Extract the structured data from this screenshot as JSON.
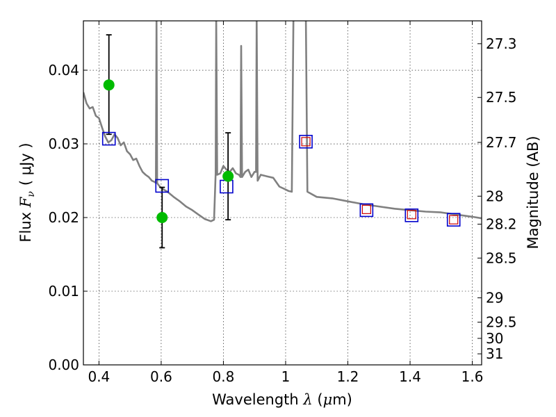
{
  "chart_data": {
    "type": "scatter",
    "xlabel": {
      "prefix": "Wavelength ",
      "symbol": "λ",
      "unit": " (μm)",
      "unit_mu": "μ",
      "unit_rest": "m)"
    },
    "ylabel": {
      "prefix": "Flux ",
      "symbol": "F",
      "subscript": "ν",
      "unit": "( μJy )"
    },
    "y2label": "Magnitude (AB)",
    "xlim": [
      0.35,
      1.63
    ],
    "ylim": [
      0.0,
      0.0467
    ],
    "grid": true,
    "xticks": [
      0.4,
      0.6,
      0.8,
      1.0,
      1.2,
      1.4,
      1.6
    ],
    "xtick_labels": [
      "0.4",
      "0.6",
      "0.8",
      "1",
      "1.2",
      "1.4",
      "1.6"
    ],
    "yticks": [
      0.0,
      0.01,
      0.02,
      0.03,
      0.04
    ],
    "ytick_labels": [
      "0.00",
      "0.01",
      "0.02",
      "0.03",
      "0.04"
    ],
    "y2ticks": [
      {
        "label": "27.3",
        "flux": 0.0436
      },
      {
        "label": "27.5",
        "flux": 0.0363
      },
      {
        "label": "27.7",
        "flux": 0.0302
      },
      {
        "label": "28",
        "flux": 0.0229
      },
      {
        "label": "28.2",
        "flux": 0.0191
      },
      {
        "label": "28.5",
        "flux": 0.0145
      },
      {
        "label": "29",
        "flux": 0.0091
      },
      {
        "label": "29.5",
        "flux": 0.0058
      },
      {
        "label": "30",
        "flux": 0.0036
      },
      {
        "label": "31",
        "flux": 0.0015
      }
    ],
    "series": [
      {
        "kind": "model-spectrum",
        "color": "#808080",
        "x": [
          0.35,
          0.36,
          0.37,
          0.38,
          0.39,
          0.4,
          0.41,
          0.42,
          0.43,
          0.44,
          0.45,
          0.46,
          0.47,
          0.48,
          0.49,
          0.5,
          0.51,
          0.52,
          0.53,
          0.54,
          0.55,
          0.56,
          0.57,
          0.58,
          0.583,
          0.585,
          0.587,
          0.59,
          0.6,
          0.62,
          0.64,
          0.66,
          0.68,
          0.7,
          0.72,
          0.74,
          0.76,
          0.77,
          0.775,
          0.777,
          0.78,
          0.79,
          0.8,
          0.81,
          0.82,
          0.83,
          0.84,
          0.85,
          0.855,
          0.857,
          0.86,
          0.87,
          0.88,
          0.89,
          0.9,
          0.905,
          0.907,
          0.91,
          0.92,
          0.94,
          0.96,
          0.98,
          1.0,
          1.01,
          1.02,
          1.025,
          1.03,
          1.035,
          1.04,
          1.05,
          1.06,
          1.065,
          1.07,
          1.1,
          1.15,
          1.2,
          1.25,
          1.3,
          1.35,
          1.4,
          1.45,
          1.5,
          1.55,
          1.6,
          1.63
        ],
        "y": [
          0.037,
          0.0355,
          0.0348,
          0.035,
          0.0338,
          0.0335,
          0.0322,
          0.031,
          0.0302,
          0.0305,
          0.0313,
          0.0308,
          0.0298,
          0.0302,
          0.029,
          0.0286,
          0.0278,
          0.028,
          0.027,
          0.0262,
          0.0258,
          0.0255,
          0.025,
          0.0248,
          0.0247,
          0.047,
          0.0247,
          0.0245,
          0.024,
          0.0235,
          0.0228,
          0.0222,
          0.0215,
          0.021,
          0.0204,
          0.0198,
          0.0195,
          0.0197,
          0.026,
          0.047,
          0.0258,
          0.026,
          0.027,
          0.0265,
          0.0262,
          0.0267,
          0.026,
          0.0258,
          0.0255,
          0.0433,
          0.0255,
          0.0262,
          0.0265,
          0.0255,
          0.0262,
          0.0262,
          0.047,
          0.025,
          0.0258,
          0.0256,
          0.0254,
          0.0242,
          0.0238,
          0.0236,
          0.0235,
          0.047,
          0.047,
          0.047,
          0.047,
          0.047,
          0.047,
          0.047,
          0.0235,
          0.0228,
          0.0226,
          0.0222,
          0.0218,
          0.0215,
          0.0212,
          0.021,
          0.0208,
          0.0207,
          0.0204,
          0.0201,
          0.0199
        ]
      },
      {
        "kind": "model-bandpass",
        "color": "#0000cc",
        "marker": "open-square",
        "x": [
          0.432,
          0.603,
          0.81,
          1.065,
          1.26,
          1.405,
          1.54
        ],
        "y": [
          0.0307,
          0.0243,
          0.0242,
          0.0303,
          0.021,
          0.0203,
          0.0197
        ]
      },
      {
        "kind": "upper-limit",
        "color": "#cc0000",
        "marker": "open-square",
        "x": [
          1.065,
          1.26,
          1.405,
          1.54
        ],
        "y": [
          0.0303,
          0.0211,
          0.0204,
          0.0197
        ]
      },
      {
        "kind": "detection",
        "color": "#00bb00",
        "marker": "filled-circle",
        "x": [
          0.432,
          0.603,
          0.815
        ],
        "y": [
          0.038,
          0.02,
          0.0256
        ],
        "yerr_low": [
          0.0313,
          0.0159,
          0.0197
        ],
        "yerr_high": [
          0.0448,
          0.0241,
          0.0315
        ]
      }
    ]
  }
}
